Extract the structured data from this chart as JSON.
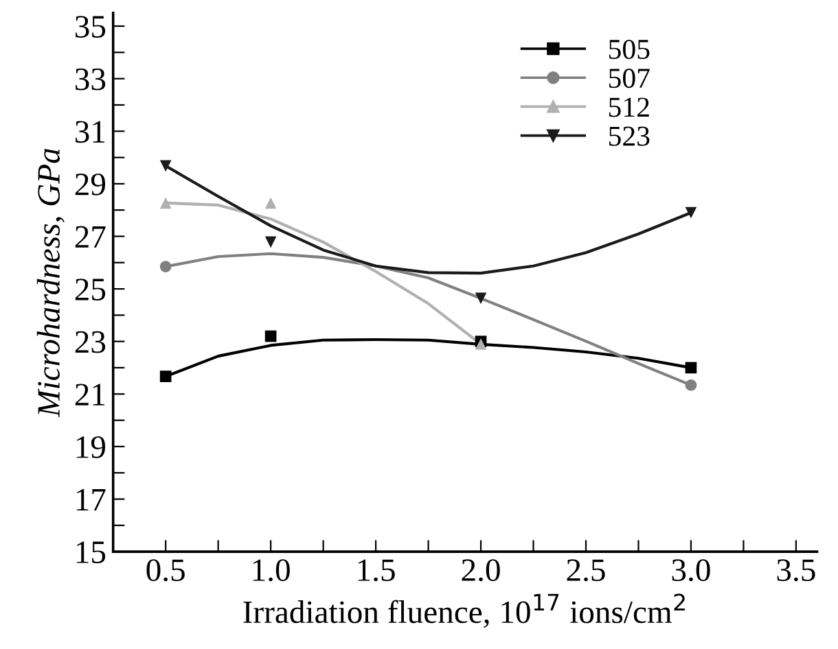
{
  "chart_data": {
    "type": "scatter",
    "xlabel": "Irradiation fluence, 10$^{17}$ ions/cm$^{2}$",
    "ylabel": "Microhardness, GPa",
    "xlim": [
      0.25,
      3.6
    ],
    "ylim": [
      15,
      35.5
    ],
    "xticks": [
      0.5,
      {
        "value": 0.75,
        "label": null
      },
      {
        "value": 1,
        "label": "1.0"
      },
      {
        "value": 1.25,
        "label": null
      },
      1.5,
      {
        "value": 1.75,
        "label": null
      },
      {
        "value": 2,
        "label": "2.0"
      },
      {
        "value": 2.25,
        "label": null
      },
      2.5,
      {
        "value": 2.75,
        "label": null
      },
      {
        "value": 3,
        "label": "3.0"
      },
      {
        "value": 3.25,
        "label": null
      },
      3.5
    ],
    "yticks": [
      15,
      {
        "value": 16,
        "label": null
      },
      17,
      {
        "value": 18,
        "label": null
      },
      19,
      {
        "value": 20,
        "label": null
      },
      21,
      {
        "value": 22,
        "label": null
      },
      23,
      {
        "value": 24,
        "label": null
      },
      25,
      {
        "value": 26,
        "label": null
      },
      27,
      {
        "value": 28,
        "label": null
      },
      29,
      {
        "value": 30,
        "label": null
      },
      31,
      {
        "value": 32,
        "label": null
      },
      33,
      {
        "value": 34,
        "label": null
      },
      35
    ],
    "grid": false,
    "legend": "top right",
    "series": [
      {
        "name": "505",
        "marker": "square",
        "color": "#000000",
        "x": [
          0.5,
          1.0,
          2.0,
          3.0
        ],
        "values": [
          21.67,
          23.2,
          23.0,
          22.0
        ]
      },
      {
        "name": "507",
        "marker": "circle",
        "color": "#808080",
        "x": [
          0.5,
          1.0,
          2.0,
          3.0
        ],
        "values": [
          25.85,
          null,
          null,
          21.34
        ]
      },
      {
        "name": "512",
        "marker": "triangle",
        "color": "#b0b0b0",
        "x": [
          0.5,
          1.0,
          2.0
        ],
        "values": [
          28.27,
          28.27,
          22.9
        ]
      },
      {
        "name": "523",
        "marker": "triangle_down",
        "color": "#1a1a1a",
        "x": [
          0.5,
          1.0,
          2.0,
          3.0
        ],
        "values": [
          29.68,
          26.78,
          24.64,
          27.9
        ]
      },
      {
        "type": "line",
        "color": "#000000",
        "x": [
          0.5,
          0.75,
          1.0,
          1.25,
          1.5,
          1.75,
          2.0,
          2.25,
          2.5,
          2.75,
          3.0
        ],
        "values": [
          21.67,
          22.44,
          22.85,
          23.05,
          23.07,
          23.05,
          22.89,
          22.77,
          22.6,
          22.36,
          22.0
        ]
      },
      {
        "type": "line",
        "color": "#808080",
        "x": [
          0.5,
          0.75,
          1.0,
          1.25,
          1.5,
          1.75,
          2.0,
          2.25,
          2.5,
          2.75,
          3.0
        ],
        "values": [
          25.85,
          26.23,
          26.34,
          26.2,
          25.87,
          25.42,
          24.64,
          23.83,
          23.01,
          22.16,
          21.34
        ]
      },
      {
        "type": "line",
        "color": "#b0b0b0",
        "x": [
          0.5,
          0.75,
          1.0,
          1.25,
          1.5,
          1.75,
          2.0
        ],
        "values": [
          28.27,
          28.19,
          27.66,
          26.78,
          25.66,
          24.44,
          22.9
        ]
      },
      {
        "type": "line",
        "color": "#1a1a1a",
        "x": [
          0.5,
          0.75,
          1.0,
          1.25,
          1.5,
          1.75,
          2.0,
          2.25,
          2.5,
          2.75,
          3.0
        ],
        "values": [
          29.68,
          28.52,
          27.4,
          26.48,
          25.87,
          25.62,
          25.6,
          25.87,
          26.38,
          27.09,
          27.9
        ]
      }
    ]
  }
}
